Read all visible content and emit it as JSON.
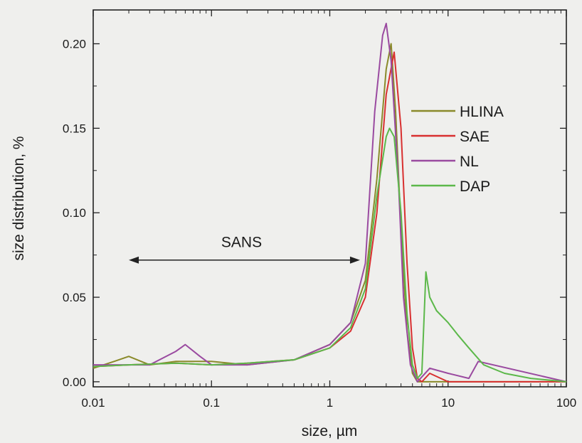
{
  "chart_data": {
    "type": "line",
    "xlabel": "size, µm",
    "ylabel": "size distribution, %",
    "xscale": "log",
    "xlim": [
      0.01,
      100
    ],
    "ylim": [
      -0.003,
      0.22
    ],
    "xticks": [
      0.01,
      0.1,
      1,
      10,
      100
    ],
    "xtick_labels": [
      "0.01",
      "0.1",
      "1",
      "10",
      "100"
    ],
    "yticks": [
      0.0,
      0.05,
      0.1,
      0.15,
      0.2
    ],
    "ytick_labels": [
      "0.00",
      "0.05",
      "0.10",
      "0.15",
      "0.20"
    ],
    "grid": false,
    "legend_position": "right",
    "annotation": {
      "text": "SANS",
      "x_from": 0.02,
      "x_to": 1.8,
      "y": 0.08
    },
    "series": [
      {
        "name": "HLINA",
        "color": "#8a8a2a",
        "x": [
          0.01,
          0.015,
          0.02,
          0.03,
          0.05,
          0.1,
          0.2,
          0.5,
          1,
          1.5,
          2,
          2.5,
          3,
          3.3,
          3.6,
          4,
          4.5,
          5,
          5.5,
          6,
          7,
          10,
          100
        ],
        "y": [
          0.008,
          0.012,
          0.015,
          0.01,
          0.012,
          0.012,
          0.01,
          0.013,
          0.022,
          0.035,
          0.06,
          0.12,
          0.185,
          0.2,
          0.16,
          0.09,
          0.03,
          0.005,
          0.0,
          0.0,
          0.0,
          0.0,
          0.0
        ]
      },
      {
        "name": "SAE",
        "color": "#d83030",
        "x": [
          0.01,
          0.02,
          0.05,
          0.1,
          0.2,
          0.5,
          1,
          1.5,
          2,
          2.5,
          3,
          3.5,
          4,
          4.5,
          5,
          5.5,
          6,
          7,
          10,
          100
        ],
        "y": [
          0.009,
          0.01,
          0.011,
          0.01,
          0.011,
          0.013,
          0.02,
          0.03,
          0.05,
          0.1,
          0.17,
          0.195,
          0.15,
          0.07,
          0.02,
          0.002,
          0.0,
          0.005,
          0.0,
          0.0
        ]
      },
      {
        "name": "NL",
        "color": "#9a4aa0",
        "x": [
          0.01,
          0.03,
          0.05,
          0.06,
          0.08,
          0.1,
          0.2,
          0.5,
          1,
          1.5,
          2,
          2.4,
          2.8,
          3,
          3.3,
          3.8,
          4.2,
          4.8,
          5.5,
          7,
          10,
          15,
          18,
          100
        ],
        "y": [
          0.01,
          0.01,
          0.018,
          0.022,
          0.015,
          0.01,
          0.01,
          0.013,
          0.022,
          0.035,
          0.07,
          0.16,
          0.205,
          0.212,
          0.19,
          0.12,
          0.05,
          0.01,
          0.0,
          0.008,
          0.005,
          0.002,
          0.012,
          0.0
        ]
      },
      {
        "name": "DAP",
        "color": "#5cb84a",
        "x": [
          0.01,
          0.02,
          0.05,
          0.1,
          0.2,
          0.5,
          1,
          1.5,
          2,
          2.5,
          3,
          3.2,
          3.5,
          4,
          4.5,
          5,
          5.5,
          6,
          6.5,
          7,
          8,
          10,
          12,
          15,
          20,
          30,
          50,
          100
        ],
        "y": [
          0.009,
          0.01,
          0.011,
          0.01,
          0.011,
          0.013,
          0.02,
          0.032,
          0.055,
          0.11,
          0.145,
          0.15,
          0.145,
          0.1,
          0.04,
          0.01,
          0.002,
          0.005,
          0.065,
          0.05,
          0.042,
          0.035,
          0.028,
          0.02,
          0.01,
          0.005,
          0.002,
          0.0
        ]
      }
    ]
  }
}
